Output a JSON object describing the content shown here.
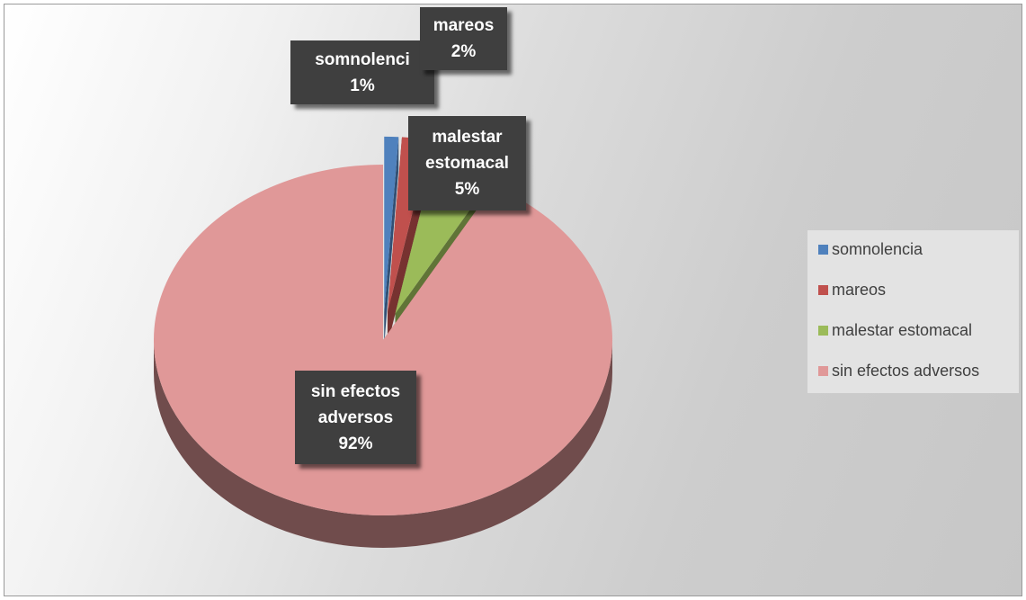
{
  "chart_data": {
    "type": "pie",
    "title": "",
    "categories": [
      "somnolencia",
      "mareos",
      "malestar estomacal",
      "sin efectos adversos"
    ],
    "values": [
      1,
      2,
      5,
      92
    ],
    "unit": "%",
    "data_labels": [
      {
        "lines": [
          "somnolenci",
          "1%"
        ]
      },
      {
        "lines": [
          "mareos",
          "2%"
        ]
      },
      {
        "lines": [
          "malestar",
          "estomacal",
          "5%"
        ]
      },
      {
        "lines": [
          "sin efectos",
          "adversos",
          "92%"
        ]
      }
    ],
    "colors": [
      "#4f81bd",
      "#c0504d",
      "#9bbb59",
      "#e09898"
    ],
    "legend_position": "right",
    "style": "3d-exploded-pie"
  }
}
